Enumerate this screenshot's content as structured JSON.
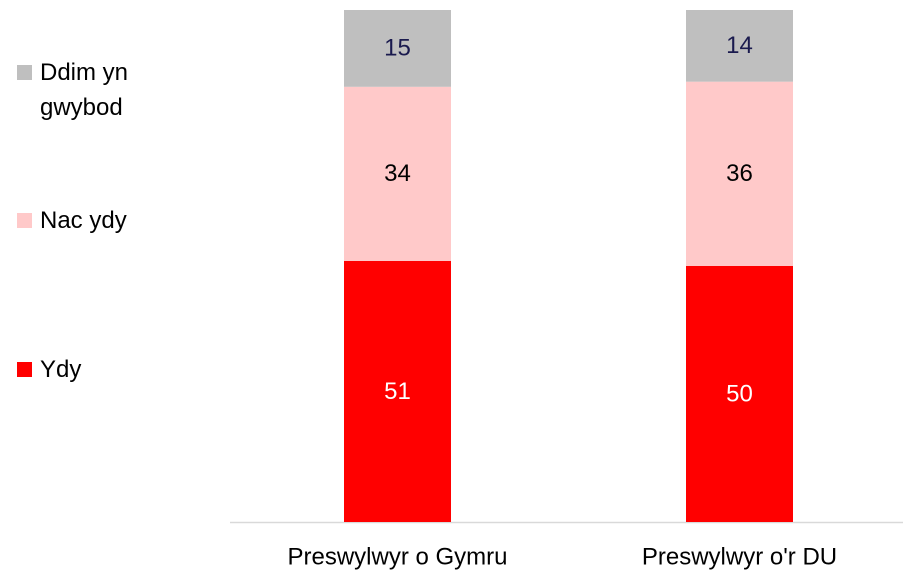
{
  "chart_data": {
    "type": "stacked_bar",
    "categories": [
      "Preswylwyr o Gymru",
      "Preswylwyr o'r DU"
    ],
    "series": [
      {
        "name": "Ydy",
        "color": "#ff0000",
        "values": [
          51,
          50
        ]
      },
      {
        "name": "Nac ydy",
        "color": "#ffc9c9",
        "values": [
          34,
          36
        ]
      },
      {
        "name": "Ddim yn gwybod",
        "color": "#bfbfbf",
        "values": [
          15,
          14
        ]
      }
    ],
    "ylim": [
      0,
      100
    ],
    "legend": "left"
  }
}
